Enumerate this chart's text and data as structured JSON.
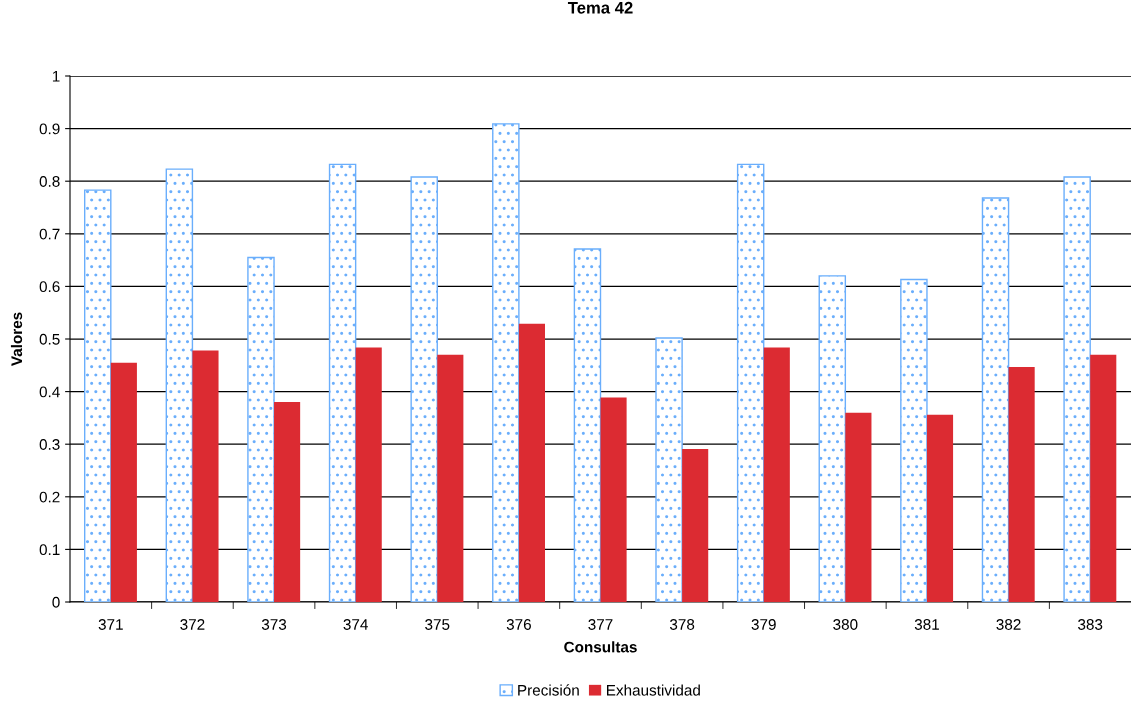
{
  "chart_data": {
    "type": "bar",
    "title": "Tema 42",
    "xlabel": "Consultas",
    "ylabel": "Valores",
    "categories": [
      "371",
      "372",
      "373",
      "374",
      "375",
      "376",
      "377",
      "378",
      "379",
      "380",
      "381",
      "382",
      "383"
    ],
    "series": [
      {
        "name": "Precisión",
        "color": "#6aaefc",
        "values": [
          0.783,
          0.823,
          0.655,
          0.832,
          0.808,
          0.909,
          0.671,
          0.502,
          0.832,
          0.62,
          0.613,
          0.768,
          0.808
        ]
      },
      {
        "name": "Exhaustividad",
        "color": "#dc2b32",
        "values": [
          0.455,
          0.478,
          0.38,
          0.484,
          0.47,
          0.529,
          0.389,
          0.291,
          0.484,
          0.36,
          0.356,
          0.447,
          0.47
        ]
      }
    ],
    "ylim": [
      0,
      1
    ],
    "yticks": [
      0,
      0.1,
      0.2,
      0.3,
      0.4,
      0.5,
      0.6,
      0.7,
      0.8,
      0.9,
      1
    ],
    "grid": "y",
    "legend": "bottom"
  }
}
